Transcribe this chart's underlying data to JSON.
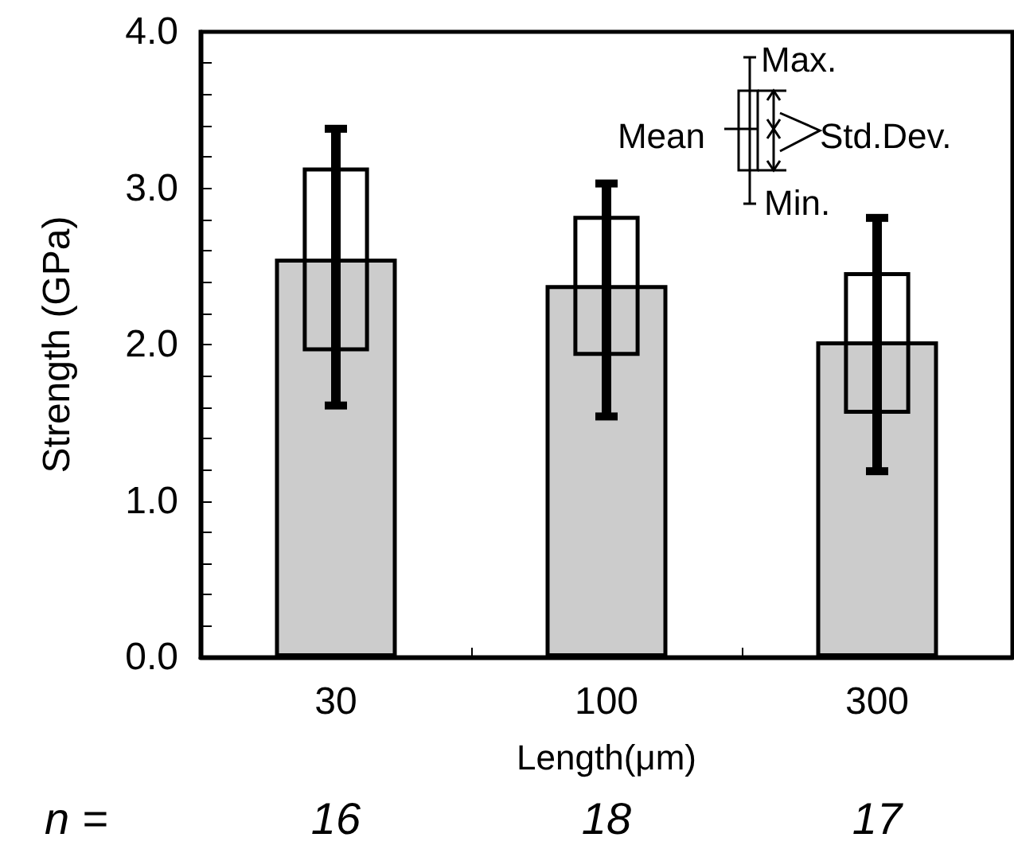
{
  "chart_data": {
    "type": "bar",
    "xlabel": "Length(μm)",
    "ylabel": "Strength (GPa)",
    "categories": [
      "30",
      "100",
      "300"
    ],
    "series": [
      {
        "color": "#cccccc",
        "values": [
          2.55,
          2.38,
          2.02
        ],
        "errors": [
          [
            1.61,
            3.38
          ],
          [
            1.54,
            3.03
          ],
          [
            1.19,
            2.81
          ]
        ]
      },
      {
        "color": "#000000",
        "base": [
          1.97,
          1.94,
          1.57
        ],
        "values": [
          1.15,
          0.87,
          0.88
        ]
      }
    ],
    "ylim": [
      0,
      4
    ],
    "yticks": [
      {
        "value": 0,
        "label": "0.0"
      },
      {
        "value": 0.2,
        "label": null
      },
      {
        "value": 0.4,
        "label": null
      },
      {
        "value": 0.6,
        "label": null
      },
      {
        "value": 0.8,
        "label": null
      },
      {
        "value": 1,
        "label": "1.0"
      },
      {
        "value": 1.2,
        "label": null
      },
      {
        "value": 1.4,
        "label": null
      },
      {
        "value": 1.6,
        "label": null
      },
      {
        "value": 1.8,
        "label": null
      },
      {
        "value": 2,
        "label": "2.0"
      },
      {
        "value": 2.2,
        "label": null
      },
      {
        "value": 2.4,
        "label": null
      },
      {
        "value": 2.6,
        "label": null
      },
      {
        "value": 2.8,
        "label": null
      },
      {
        "value": 3,
        "label": "3.0"
      },
      {
        "value": 3.2,
        "label": null
      },
      {
        "value": 3.4,
        "label": null
      },
      {
        "value": 3.6,
        "label": null
      },
      {
        "value": 3.8,
        "label": null
      },
      {
        "value": 4,
        "label": "4.0"
      }
    ],
    "annotations": [
      "Max.",
      "Mean",
      "Std.Dev.",
      "Min.",
      "n =",
      "16",
      "18",
      "17"
    ]
  }
}
